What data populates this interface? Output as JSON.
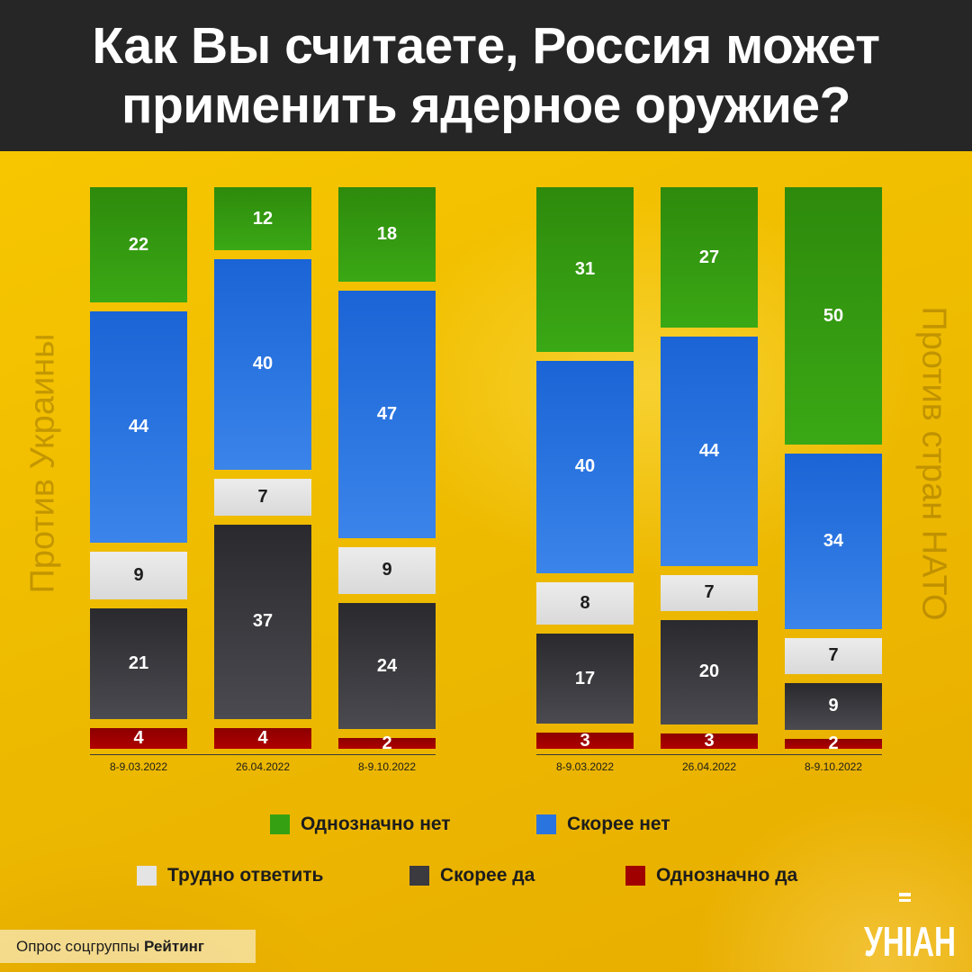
{
  "title": "Как Вы считаете, Россия может применить ядерное оружие?",
  "source": {
    "prefix": "Опрос соцгруппы",
    "name": "Рейтинг"
  },
  "logo_text": "УНІАН",
  "colors": {
    "definitely_no": "#35a012",
    "probably_no": "#2a74e0",
    "hard_to_say": "#e4e4e4",
    "probably_yes": "#3a3a3f",
    "definitely_yes": "#a00000"
  },
  "chart_data": [
    {
      "type": "bar",
      "title": "Против Украины",
      "categories": [
        "8-9.03.2022",
        "26.04.2022",
        "8-9.10.2022"
      ],
      "series": [
        {
          "name": "Однозначно нет",
          "values": [
            22,
            12,
            18
          ]
        },
        {
          "name": "Скорее нет",
          "values": [
            44,
            40,
            47
          ]
        },
        {
          "name": "Трудно ответить",
          "values": [
            9,
            7,
            9
          ]
        },
        {
          "name": "Скорее да",
          "values": [
            21,
            37,
            24
          ]
        },
        {
          "name": "Однозначно да",
          "values": [
            4,
            4,
            2
          ]
        }
      ],
      "stacked": true
    },
    {
      "type": "bar",
      "title": "Против стран НАТО",
      "categories": [
        "8-9.03.2022",
        "26.04.2022",
        "8-9.10.2022"
      ],
      "series": [
        {
          "name": "Однозначно нет",
          "values": [
            31,
            27,
            50
          ]
        },
        {
          "name": "Скорее нет",
          "values": [
            40,
            44,
            34
          ]
        },
        {
          "name": "Трудно ответить",
          "values": [
            8,
            7,
            7
          ]
        },
        {
          "name": "Скорее да",
          "values": [
            17,
            20,
            9
          ]
        },
        {
          "name": "Однозначно да",
          "values": [
            3,
            3,
            2
          ]
        }
      ],
      "stacked": true
    }
  ],
  "legend": [
    {
      "name": "Однозначно нет"
    },
    {
      "name": "Скорее нет"
    },
    {
      "name": "Трудно ответить"
    },
    {
      "name": "Скорее да"
    },
    {
      "name": "Однозначно да"
    }
  ]
}
